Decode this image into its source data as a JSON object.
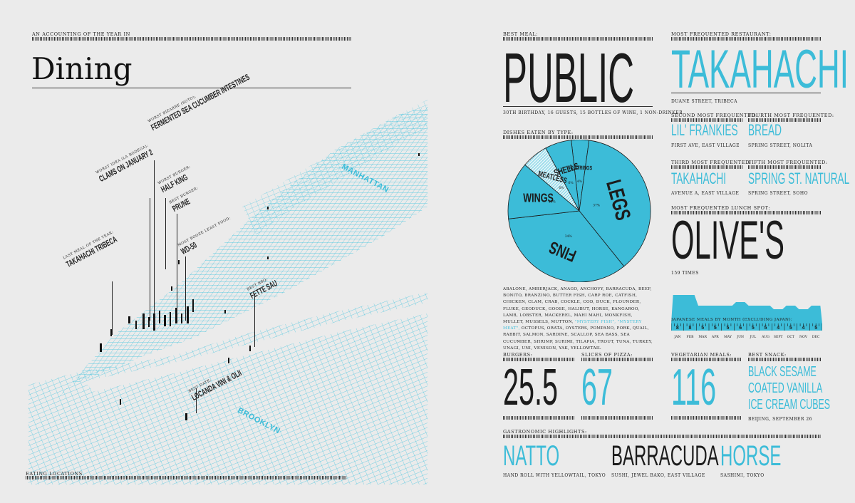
{
  "left": {
    "kicker": "AN ACCOUNTING OF THE YEAR IN",
    "title": "Dining",
    "footer_label": "EATING LOCATIONS",
    "boroughs": [
      "MANHATTAN",
      "BROOKLYN"
    ],
    "annotations": [
      {
        "label": "WORST BIZARRE (SOTO):",
        "name": "FERMENTED SEA CUCUMBER INTESTINES"
      },
      {
        "label": "WORST IDEA (LA BODEGA):",
        "name": "CLAMS ON JANUARY 2"
      },
      {
        "label": "WORST BURGER:",
        "name": "HALF KING"
      },
      {
        "label": "BEST BURGER:",
        "name": "PRUNE"
      },
      {
        "label": "MOST BOOZE LEAST FOOD:",
        "name": "WD-50"
      },
      {
        "label": "LAST MEAL OF THE YEAR:",
        "name": "TAKAHACHI TRIBECA"
      },
      {
        "label": "BEST BBQ:",
        "name": "FETTE SAU"
      },
      {
        "label": "BEST DATE:",
        "name": "LOCANDA VINI & OLII"
      }
    ]
  },
  "best_meal": {
    "label": "BEST MEAL:",
    "value": "PUBLIC",
    "caption": "30TH BIRTHDAY, 16 GUESTS, 15 BOTTLES OF WINE, 1 NON-DRINKER"
  },
  "dishes": {
    "label": "DISHES EATEN BY TYPE:",
    "slices": [
      {
        "name": "LEGS",
        "pct": "37%",
        "value": 37
      },
      {
        "name": "FINS",
        "pct": "34%",
        "value": 34
      },
      {
        "name": "WINGS",
        "pct": "13%",
        "value": 13
      },
      {
        "name": "MEATLESS",
        "pct": "6%",
        "value": 6
      },
      {
        "name": "SHELLS",
        "pct": "6%",
        "value": 6
      },
      {
        "name": "NO STRINGS",
        "pct": "4%",
        "value": 4
      }
    ],
    "list_before": "ABALONE, AMBERJACK, ANAGO, ANCHOVY, BARRACUDA, BEEF, BONITO, BRANZINO, BUTTER FISH, CARP ROE, CATFISH, CHICKEN, CLAM, CRAB, COCKLE, COD, DUCK, FLOUNDER, FLUKE, GEODUCK, GOOSE, HALIBUT, HORSE, KANGAROO, LAMB, LOBSTER, MACKEREL, MAHI MAHI, MONKFISH, MULLET, MUSSELS, MUTTON,",
    "list_highlight": "\"MYSTERY FISH\", \"MYSTERY MEAT\",",
    "list_after": "OCTOPUS, ORATA, OYSTERS, POMPANO, PORK, QUAIL, RABBIT, SALMON, SARDINE, SCALLOP, SEA BASS, SEA CUCUMBER, SHRIMP, SURIMI, TILAPIA, TROUT, TUNA, TURKEY, UNAGI, UNI, VENISON, YAK, YELLOWTAIL"
  },
  "restaurant": {
    "label": "MOST FREQUENTED RESTAURANT:",
    "value": "TAKAHACHI",
    "caption": "DUANE STREET, TRIBECA",
    "second_label": "SECOND MOST FREQUENTED:",
    "second": "LIL' FRANKIES",
    "second_caption": "FIRST AVE, EAST VILLAGE",
    "fourth_label": "FOURTH MOST FREQUENTED:",
    "fourth": "BREAD",
    "fourth_caption": "SPRING STREET, NOLITA",
    "third_label": "THIRD MOST FREQUENTED:",
    "third": "TAKAHACHI",
    "third_caption": "AVENUE A, EAST VILLAGE",
    "fifth_label": "FIFTH MOST FREQUENTED:",
    "fifth": "SPRING ST. NATURAL",
    "fifth_caption": "SPRING STREET, SOHO"
  },
  "lunch": {
    "label": "MOST FREQUENTED LUNCH SPOT:",
    "value": "OLIVE'S",
    "caption": "159 TIMES"
  },
  "chart_data": {
    "type": "area",
    "title": "JAPANESE MEALS BY MONTH (EXCLUDING JAPAN):",
    "categories": [
      "JAN",
      "FEB",
      "MAR",
      "APR",
      "MAY",
      "JUN",
      "JUL",
      "AUG",
      "SEPT",
      "OCT",
      "NOV",
      "DEC"
    ],
    "values": [
      8,
      8,
      5,
      5,
      5,
      6,
      5,
      5,
      4,
      5,
      4,
      5
    ],
    "labels": [
      "8",
      "8",
      "5",
      "5",
      "5",
      "6",
      "5",
      "5",
      "4",
      "5",
      "4",
      "5"
    ],
    "ylim": [
      0,
      12
    ]
  },
  "burgers": {
    "label": "BURGERS:",
    "value": "25.5"
  },
  "pizza": {
    "label": "SLICES OF PIZZA:",
    "value": "67"
  },
  "veg": {
    "label": "VEGETARIAN MEALS:",
    "value": "116"
  },
  "snack": {
    "label": "BEST SNACK:",
    "lines": [
      "BLACK SESAME",
      "COATED VANILLA",
      "ICE CREAM CUBES"
    ],
    "caption": "BEIJING, SEPTEMBER 26"
  },
  "highlights": {
    "label": "GASTRONOMIC HIGHLIGHTS:",
    "items": [
      {
        "name": "NATTO",
        "caption": "HAND ROLL WITH YELLOWTAIL, TOKYO"
      },
      {
        "name": "BARRACUDA",
        "caption": "SUSHI, JEWEL BAKO, EAST VILLAGE"
      },
      {
        "name": "HORSE",
        "caption": "SASHIMI, TOKYO"
      }
    ]
  },
  "colors": {
    "accent": "#3cbcd8",
    "ink": "#1c1c1c",
    "paper": "#ebebeb"
  }
}
